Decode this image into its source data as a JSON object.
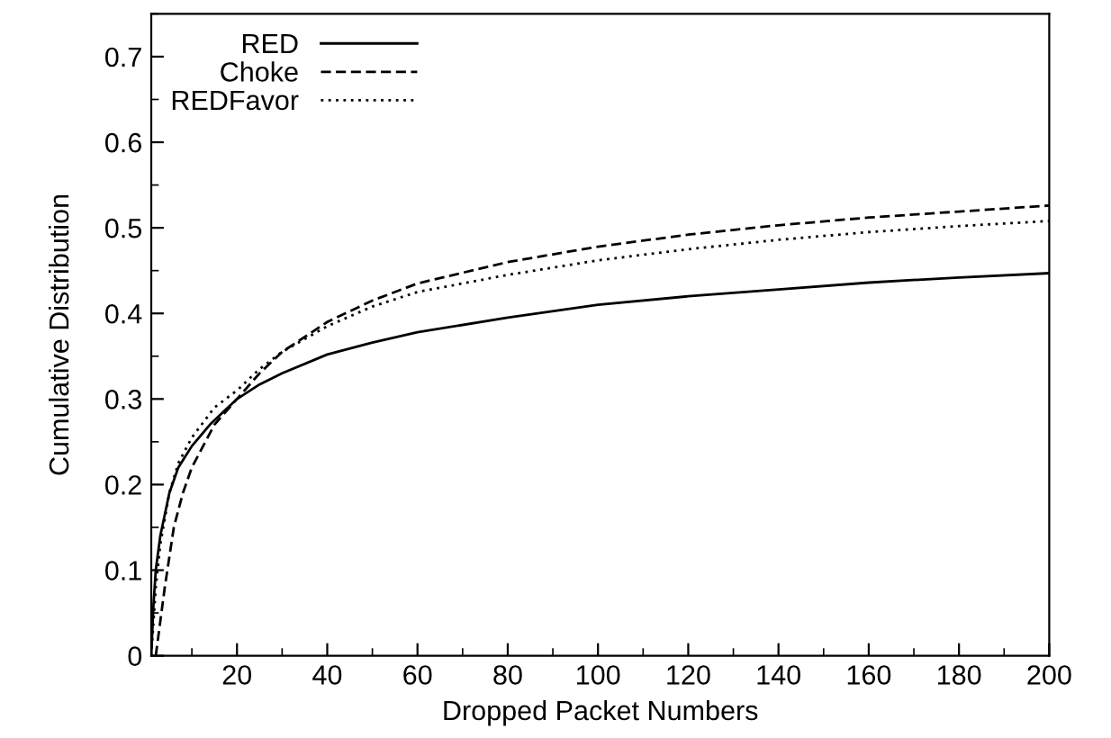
{
  "chart_data": {
    "type": "line",
    "xlabel": "Dropped Packet Numbers",
    "ylabel": "Cumulative Distribution",
    "xlim": [
      1,
      200
    ],
    "xticks": [
      20,
      40,
      60,
      80,
      100,
      120,
      140,
      160,
      180,
      200
    ],
    "ylim": [
      0,
      0.75
    ],
    "yticks": [
      0,
      0.1,
      0.2,
      0.3,
      0.4,
      0.5,
      0.6,
      0.7
    ],
    "grid": false,
    "legend": "top left",
    "marker": "none",
    "series": [
      {
        "name": "RED",
        "color": "#000000",
        "line_style": "solid",
        "x": [
          1,
          1.5,
          2,
          3,
          5,
          7,
          10,
          14,
          18,
          20,
          25,
          30,
          40,
          50,
          60,
          80,
          100,
          120,
          140,
          160,
          180,
          200
        ],
        "values": [
          0,
          0.06,
          0.1,
          0.14,
          0.19,
          0.22,
          0.245,
          0.27,
          0.29,
          0.3,
          0.317,
          0.33,
          0.352,
          0.366,
          0.378,
          0.395,
          0.41,
          0.42,
          0.428,
          0.436,
          0.442,
          0.447
        ]
      },
      {
        "name": "Choke",
        "color": "#000000",
        "line_style": "dashed",
        "x": [
          2,
          3,
          4,
          6,
          8,
          10,
          15,
          20,
          25,
          30,
          40,
          50,
          60,
          80,
          100,
          120,
          140,
          160,
          180,
          200
        ],
        "values": [
          0,
          0.04,
          0.08,
          0.15,
          0.19,
          0.22,
          0.27,
          0.3,
          0.33,
          0.355,
          0.39,
          0.415,
          0.435,
          0.46,
          0.478,
          0.492,
          0.503,
          0.512,
          0.519,
          0.526
        ]
      },
      {
        "name": "REDFavor",
        "color": "#000000",
        "line_style": "dotted",
        "x": [
          1,
          1.5,
          2,
          3,
          5,
          7,
          10,
          15,
          20,
          25,
          30,
          40,
          50,
          60,
          80,
          100,
          120,
          140,
          160,
          180,
          200
        ],
        "values": [
          0,
          0.04,
          0.08,
          0.13,
          0.19,
          0.225,
          0.255,
          0.29,
          0.31,
          0.335,
          0.355,
          0.385,
          0.408,
          0.425,
          0.445,
          0.462,
          0.475,
          0.486,
          0.495,
          0.502,
          0.508
        ]
      }
    ]
  }
}
